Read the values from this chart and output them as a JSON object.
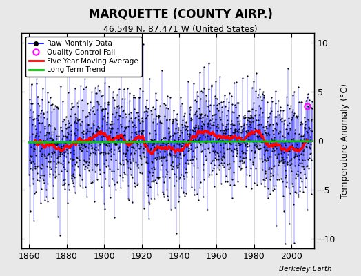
{
  "title": "MARQUETTE (COUNTY AIRP.)",
  "subtitle": "46.549 N, 87.471 W (United States)",
  "ylabel": "Temperature Anomaly (°C)",
  "credit": "Berkeley Earth",
  "xlim": [
    1856,
    2012
  ],
  "ylim": [
    -11,
    11
  ],
  "yticks": [
    -10,
    -5,
    0,
    5,
    10
  ],
  "xticks": [
    1860,
    1880,
    1900,
    1920,
    1940,
    1960,
    1980,
    2000
  ],
  "start_year": 1860,
  "end_year": 2011,
  "bg_color": "#e8e8e8",
  "plot_bg": "#ffffff",
  "line_color": "#0000ff",
  "ma_color": "#ff0000",
  "trend_color": "#00cc00",
  "marker_color": "#000000",
  "qc_color": "#ff00ff",
  "seed": 123
}
